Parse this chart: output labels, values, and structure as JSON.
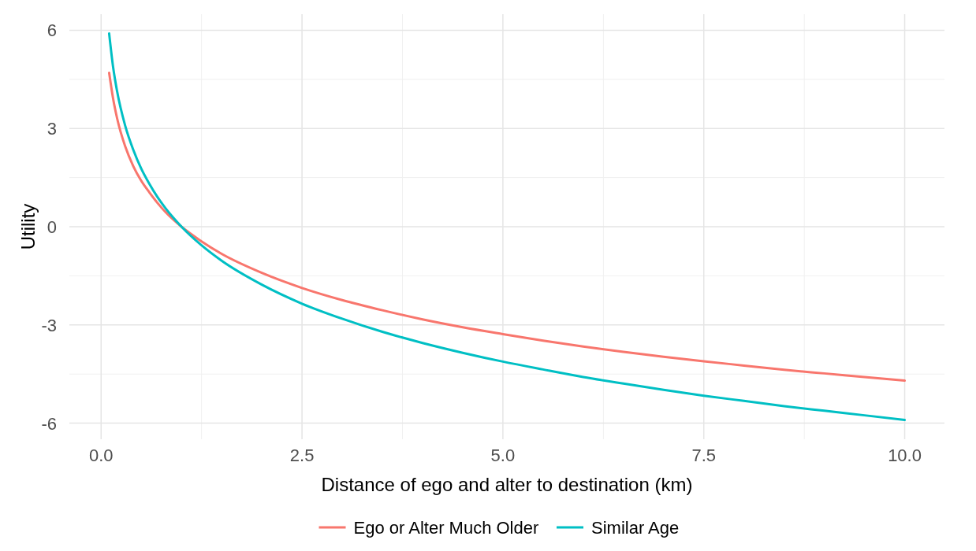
{
  "chart_data": {
    "type": "line",
    "xlabel": "Distance of ego and alter to destination (km)",
    "ylabel": "Utility",
    "xlim": [
      -0.395,
      10.495
    ],
    "ylim": [
      -6.49,
      6.49
    ],
    "xticks": [
      {
        "value": 0,
        "label": "0.0"
      },
      {
        "value": 2.5,
        "label": "2.5"
      },
      {
        "value": 5,
        "label": "5.0"
      },
      {
        "value": 7.5,
        "label": "7.5"
      },
      {
        "value": 10,
        "label": "10.0"
      }
    ],
    "yticks": [
      -6,
      -3,
      0,
      3,
      6
    ],
    "grid": true,
    "legend": "bottom",
    "line_style": "solid",
    "series": [
      {
        "name": "Ego or Alter Much Older",
        "color": "#f8766d",
        "x": [
          0.1,
          0.15,
          0.2,
          0.3,
          0.4,
          0.5,
          0.6,
          0.7,
          0.8,
          0.9,
          1,
          1.25,
          1.5,
          2,
          2.5,
          3,
          3.5,
          4,
          4.5,
          5,
          5.5,
          6,
          6.5,
          7,
          7.5,
          8,
          8.5,
          9,
          9.5,
          10
        ],
        "values": [
          4.7,
          3.9,
          3.3,
          2.45,
          1.85,
          1.4,
          1.05,
          0.73,
          0.45,
          0.21,
          0,
          -0.45,
          -0.83,
          -1.41,
          -1.87,
          -2.24,
          -2.55,
          -2.83,
          -3.07,
          -3.28,
          -3.48,
          -3.66,
          -3.82,
          -3.97,
          -4.11,
          -4.24,
          -4.37,
          -4.48,
          -4.59,
          -4.7
        ]
      },
      {
        "name": "Similar Age",
        "color": "#00bfc4",
        "x": [
          0.1,
          0.15,
          0.2,
          0.3,
          0.4,
          0.5,
          0.6,
          0.7,
          0.8,
          0.9,
          1,
          1.25,
          1.5,
          2,
          2.5,
          3,
          3.5,
          4,
          4.5,
          5,
          5.5,
          6,
          6.5,
          7,
          7.5,
          8,
          8.5,
          9,
          9.5,
          10
        ],
        "values": [
          5.9,
          4.86,
          4.12,
          3.08,
          2.35,
          1.77,
          1.31,
          0.91,
          0.57,
          0.27,
          0,
          -0.57,
          -1.04,
          -1.77,
          -2.35,
          -2.81,
          -3.21,
          -3.55,
          -3.85,
          -4.12,
          -4.36,
          -4.59,
          -4.79,
          -4.98,
          -5.16,
          -5.32,
          -5.48,
          -5.62,
          -5.76,
          -5.9
        ]
      }
    ]
  }
}
